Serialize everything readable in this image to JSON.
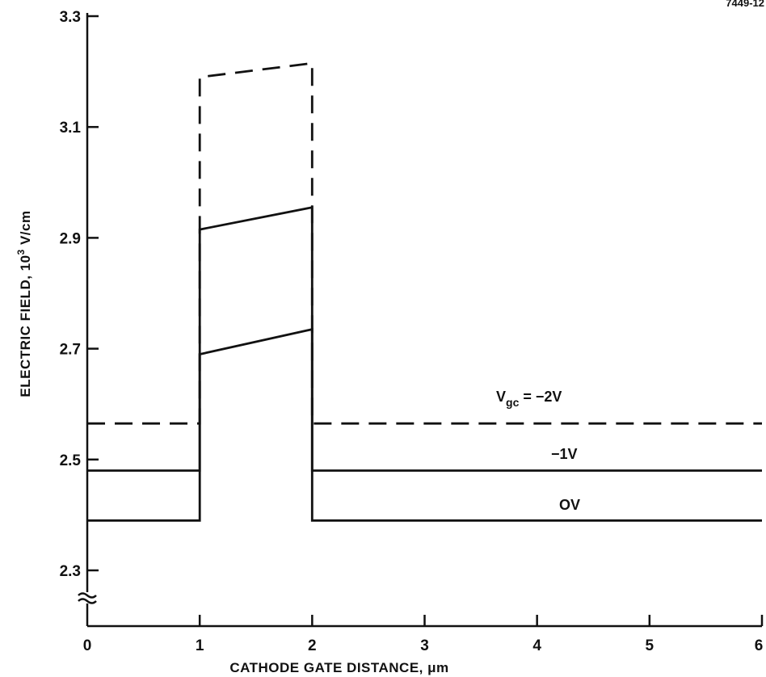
{
  "figure_tag": "7449-12",
  "chart_data": {
    "type": "line",
    "title": "",
    "xlabel": "CATHODE GATE DISTANCE, μm",
    "ylabel_prefix": "ELECTRIC FIELD, 10",
    "ylabel_exp": "3",
    "ylabel_suffix": " V/cm",
    "xlim": [
      0,
      6
    ],
    "ylim": [
      2.3,
      3.3
    ],
    "y_axis_break": true,
    "grid": false,
    "x_ticks": [
      0,
      1,
      2,
      3,
      4,
      5,
      6
    ],
    "y_ticks": [
      2.3,
      2.5,
      2.7,
      2.9,
      3.1,
      3.3
    ],
    "x_tick_labels": [
      "0",
      "1",
      "2",
      "3",
      "4",
      "5",
      "6"
    ],
    "y_tick_labels": [
      "2.3",
      "2.5",
      "2.7",
      "2.9",
      "3.1",
      "3.3"
    ],
    "series": [
      {
        "label_main": "V",
        "label_sub": "gc",
        "label_rest": " = −2V",
        "style": "dashed",
        "color": "#111111",
        "x": [
          0,
          1,
          1,
          2,
          2,
          6
        ],
        "y": [
          2.565,
          2.565,
          3.19,
          3.215,
          2.565,
          2.565
        ]
      },
      {
        "label_main": "−1V",
        "style": "solid",
        "color": "#111111",
        "x": [
          0,
          1,
          1,
          2,
          2,
          6
        ],
        "y": [
          2.48,
          2.48,
          2.915,
          2.955,
          2.48,
          2.48
        ]
      },
      {
        "label_main": "OV",
        "style": "solid",
        "color": "#111111",
        "x": [
          0,
          1,
          1,
          2,
          2,
          6
        ],
        "y": [
          2.39,
          2.39,
          2.69,
          2.735,
          2.39,
          2.39
        ]
      }
    ]
  }
}
